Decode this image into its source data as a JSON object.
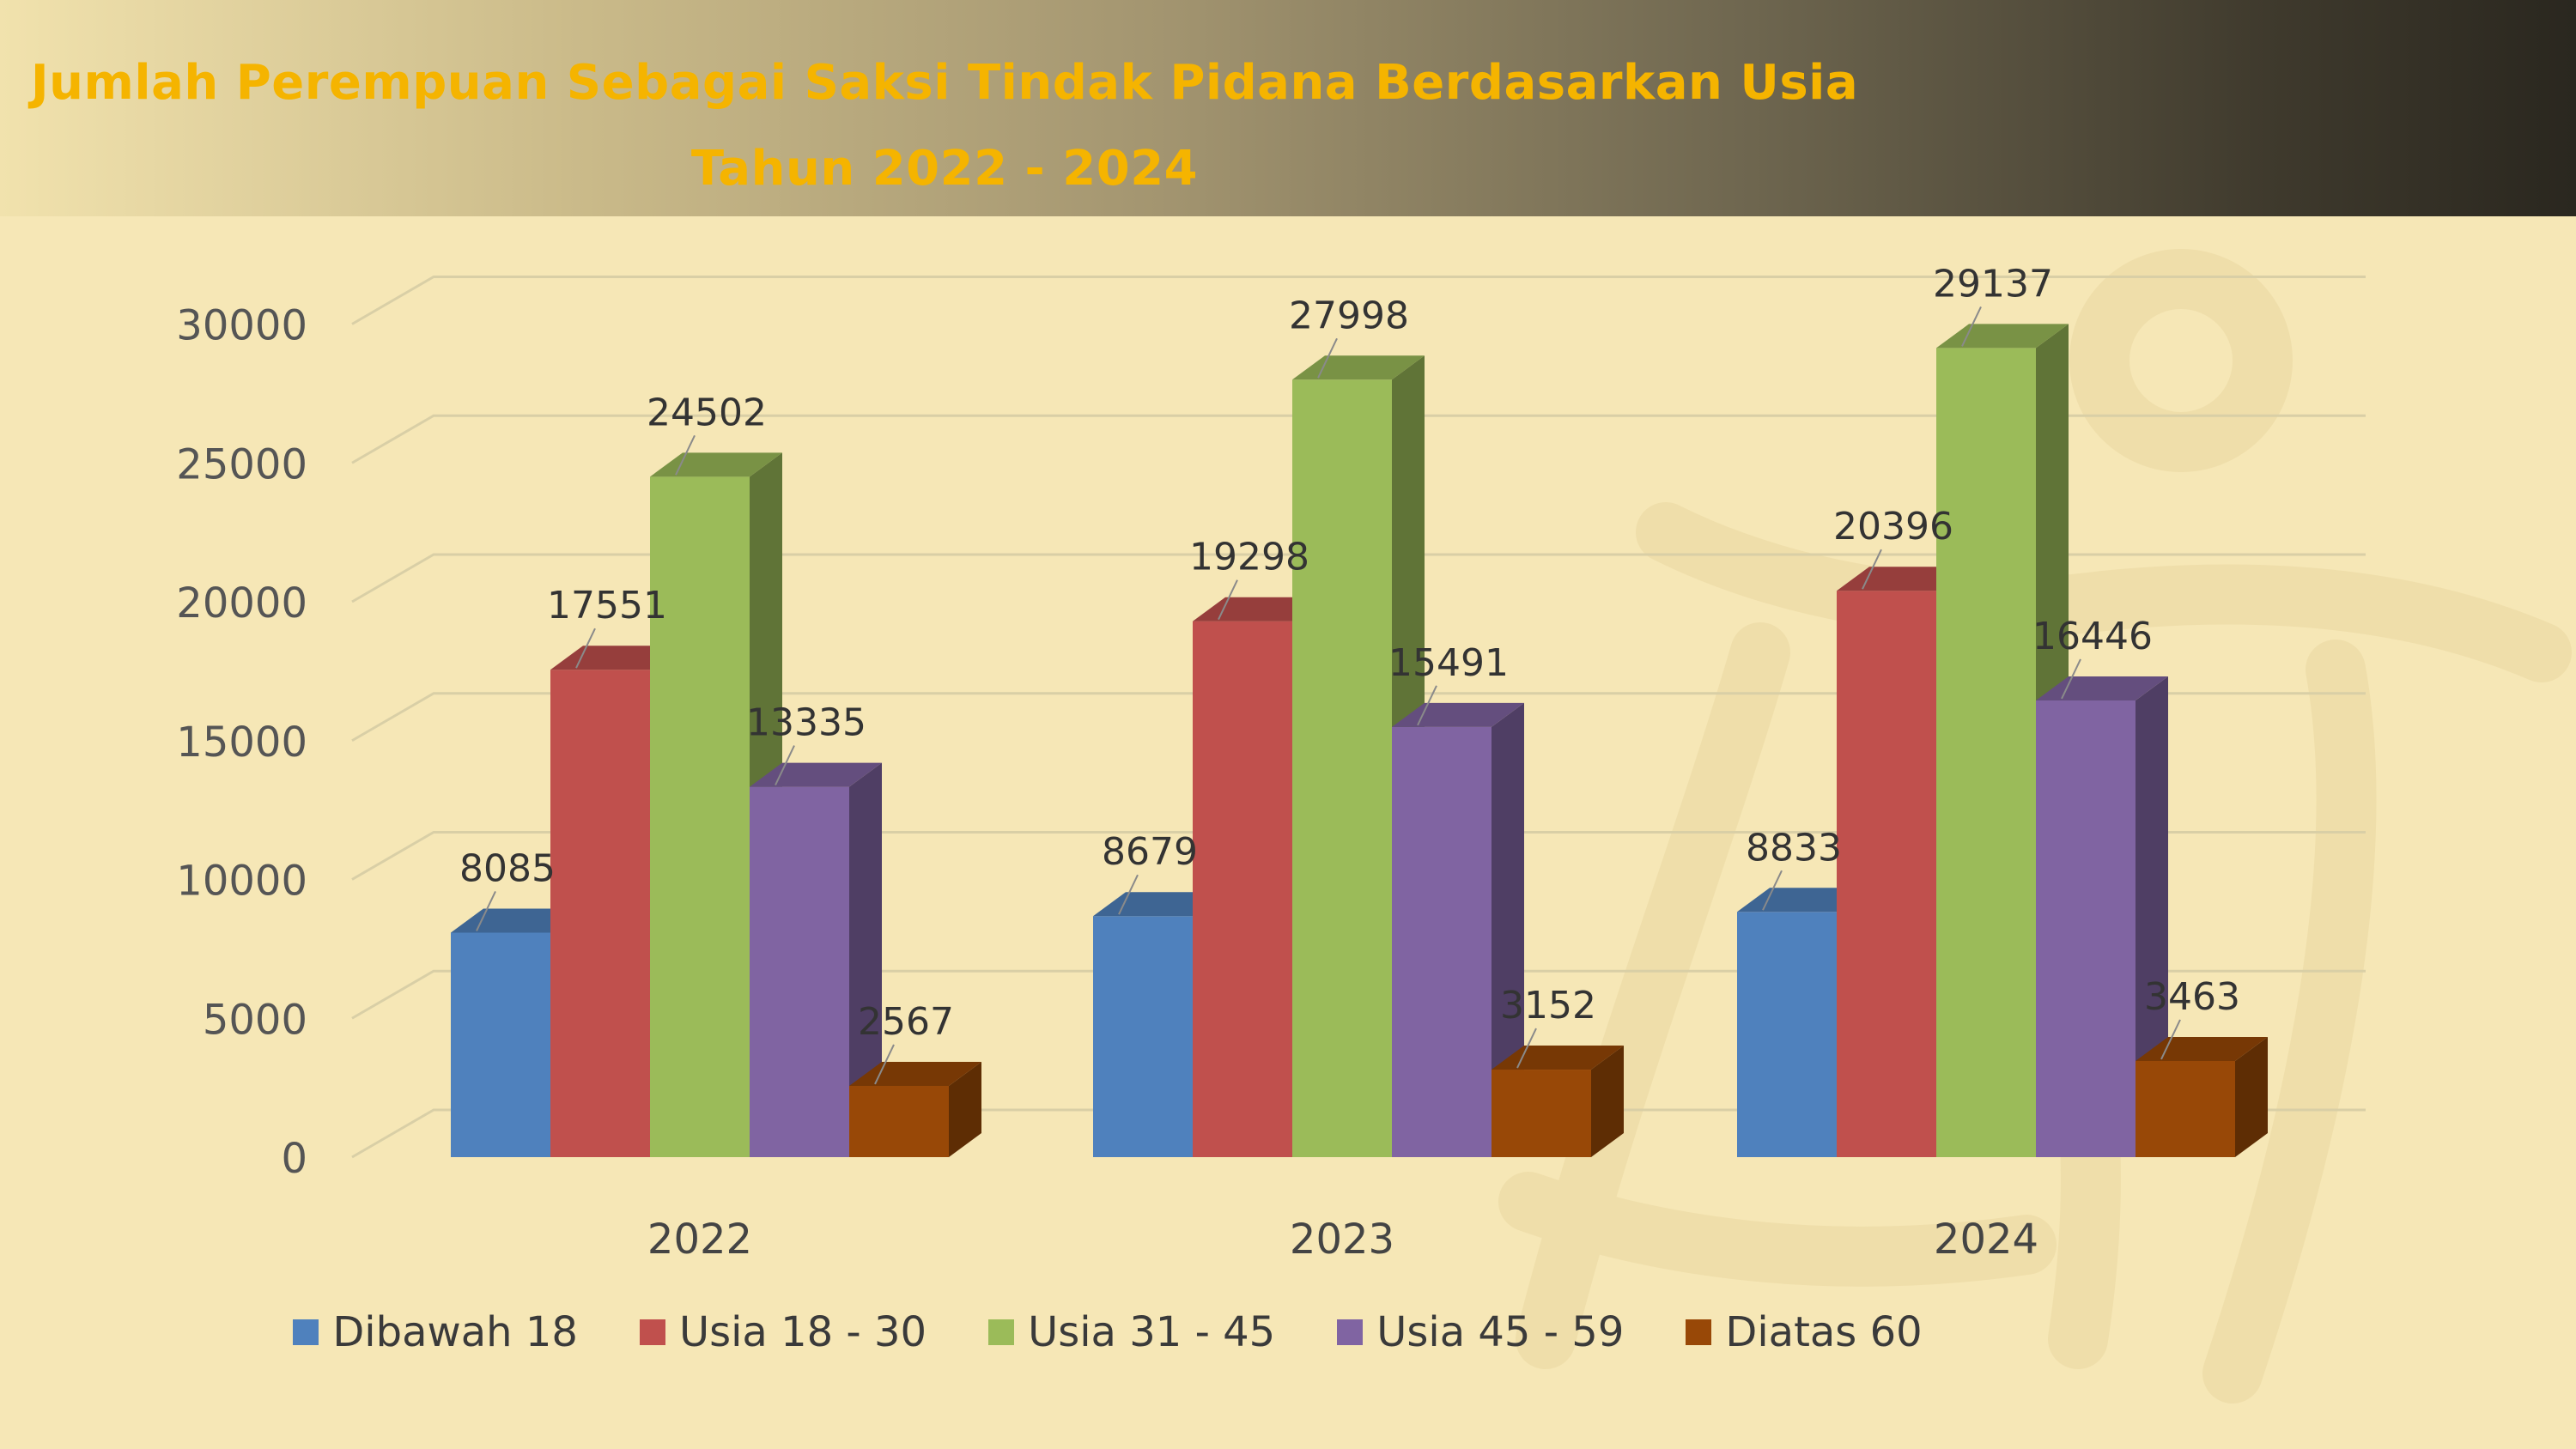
{
  "header": {
    "title_line1": "Jumlah Perempuan Sebagai Saksi Tindak Pidana Berdasarkan Usia",
    "title_line2": "Tahun 2022 - 2024"
  },
  "colors": {
    "background": "#f6e7b6",
    "title_text": "#f5b400"
  },
  "chart_data": {
    "type": "bar",
    "style": "3d-clustered-column",
    "categories": [
      "2022",
      "2023",
      "2024"
    ],
    "series": [
      {
        "name": "Dibawah 18",
        "color": "#4f81bd",
        "values": [
          8085,
          8679,
          8833
        ]
      },
      {
        "name": "Usia 18 - 30",
        "color": "#c0504d",
        "values": [
          17551,
          19298,
          20396
        ]
      },
      {
        "name": "Usia 31 - 45",
        "color": "#9bbb59",
        "values": [
          24502,
          27998,
          29137
        ]
      },
      {
        "name": "Usia 45 - 59",
        "color": "#8064a2",
        "values": [
          13335,
          15491,
          16446
        ]
      },
      {
        "name": "Diatas 60",
        "color": "#984807",
        "values": [
          2567,
          3152,
          3463
        ]
      }
    ],
    "y_ticks": [
      "0",
      "5000",
      "10000",
      "15000",
      "20000",
      "25000",
      "30000"
    ],
    "ylim": [
      0,
      35000
    ],
    "grid": true,
    "legend_position": "bottom",
    "data_labels": true
  }
}
